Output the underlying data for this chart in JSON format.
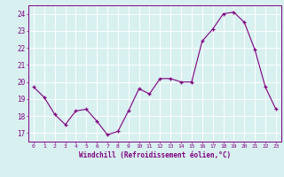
{
  "x": [
    0,
    1,
    2,
    3,
    4,
    5,
    6,
    7,
    8,
    9,
    10,
    11,
    12,
    13,
    14,
    15,
    16,
    17,
    18,
    19,
    20,
    21,
    22,
    23
  ],
  "y": [
    19.7,
    19.1,
    18.1,
    17.5,
    18.3,
    18.4,
    17.7,
    16.9,
    17.1,
    18.3,
    19.6,
    19.3,
    20.2,
    20.2,
    20.0,
    20.0,
    22.4,
    23.1,
    24.0,
    24.1,
    23.5,
    21.9,
    19.7,
    18.4
  ],
  "xlim": [
    -0.5,
    23.5
  ],
  "ylim": [
    16.5,
    24.5
  ],
  "yticks": [
    17,
    18,
    19,
    20,
    21,
    22,
    23,
    24
  ],
  "xticks": [
    0,
    1,
    2,
    3,
    4,
    5,
    6,
    7,
    8,
    9,
    10,
    11,
    12,
    13,
    14,
    15,
    16,
    17,
    18,
    19,
    20,
    21,
    22,
    23
  ],
  "xlabel": "Windchill (Refroidissement éolien,°C)",
  "line_color": "#800080",
  "marker": "+",
  "bg_color": "#d8f0f0",
  "grid_color": "#ffffff",
  "label_color": "#800080",
  "tick_color": "#800080",
  "xlabel_fontsize": 5.5,
  "ytick_fontsize": 5.5,
  "xtick_fontsize": 4.5
}
